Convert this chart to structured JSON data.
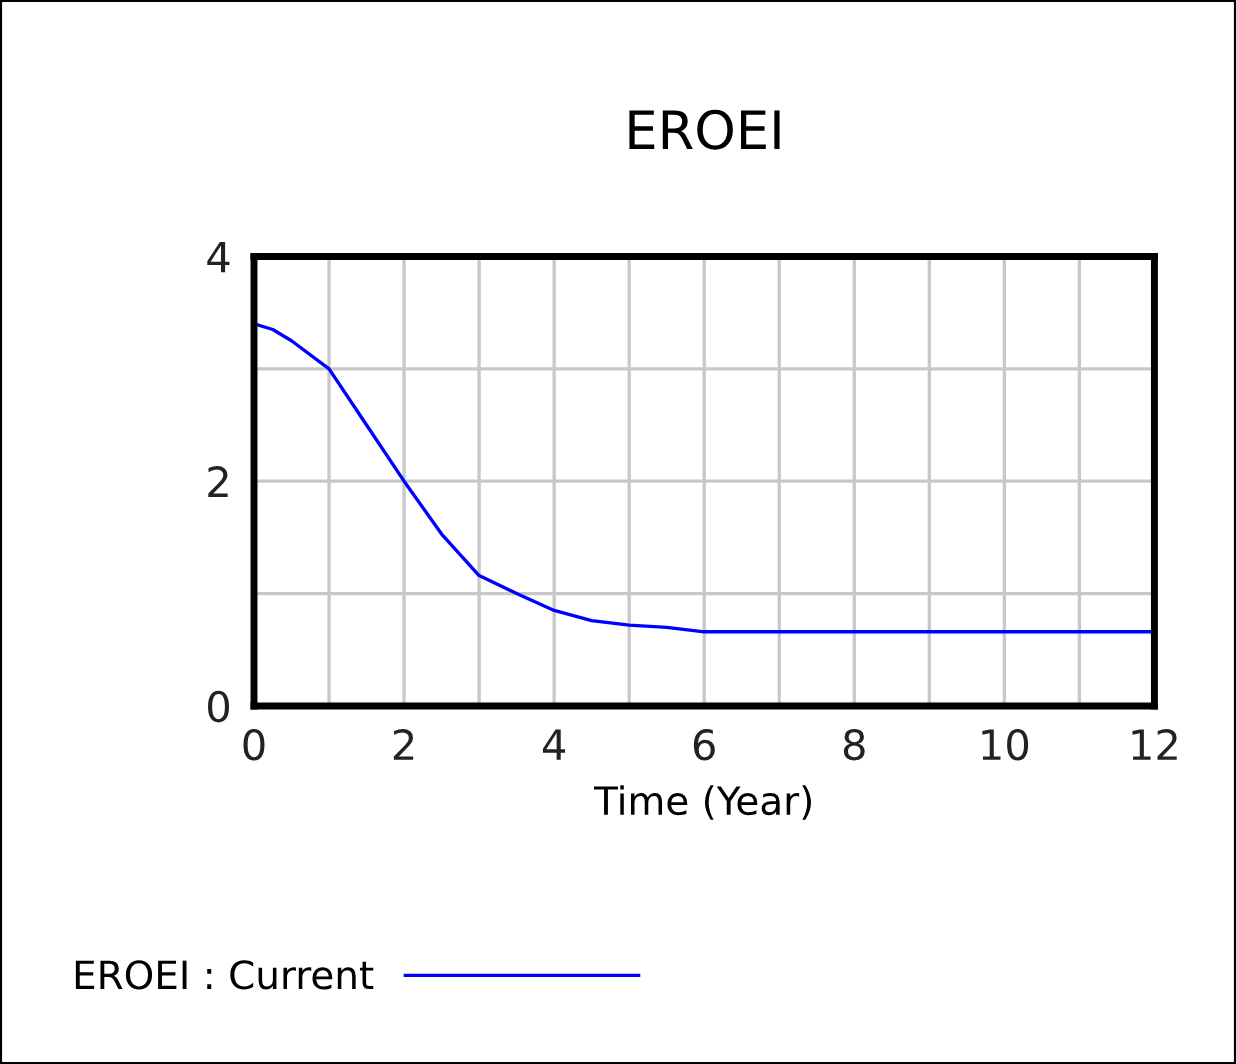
{
  "chart_data": {
    "type": "line",
    "title": "EROEI",
    "xlabel": "Time (Year)",
    "x": [
      0,
      0.25,
      0.5,
      1,
      1.5,
      2,
      2.5,
      3,
      3.5,
      4,
      4.5,
      5,
      5.5,
      6,
      7,
      8,
      9,
      10,
      11,
      12
    ],
    "series": [
      {
        "name": "EROEI : Current",
        "color": "#0000ff",
        "values": [
          3.4,
          3.35,
          3.25,
          3.0,
          2.5,
          2.0,
          1.53,
          1.16,
          1.0,
          0.85,
          0.76,
          0.72,
          0.7,
          0.66,
          0.66,
          0.66,
          0.66,
          0.66,
          0.66,
          0.66
        ]
      }
    ],
    "xlim": [
      0,
      12
    ],
    "ylim": [
      0,
      4
    ],
    "xticks": [
      0,
      {
        "value": 1,
        "label": null
      },
      2,
      {
        "value": 3,
        "label": null
      },
      4,
      {
        "value": 5,
        "label": null
      },
      6,
      {
        "value": 7,
        "label": null
      },
      8,
      {
        "value": 9,
        "label": null
      },
      10,
      {
        "value": 11,
        "label": null
      },
      12
    ],
    "yticks": [
      0,
      {
        "value": 1,
        "label": null
      },
      2,
      {
        "value": 3,
        "label": null
      },
      4
    ],
    "grid": true,
    "legend": "bottom left",
    "marker": "none",
    "line_style": "solid"
  }
}
